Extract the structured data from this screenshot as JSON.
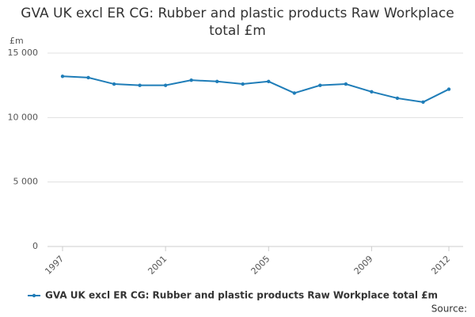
{
  "chart_data": {
    "type": "line",
    "title": "GVA UK excl ER CG: Rubber and plastic products Raw Workplace total £m",
    "y_label": "£m",
    "x": [
      1997,
      1998,
      1999,
      2000,
      2001,
      2002,
      2003,
      2004,
      2005,
      2006,
      2007,
      2008,
      2009,
      2010,
      2011,
      2012
    ],
    "series": [
      {
        "name": "GVA UK excl ER CG: Rubber and plastic products Raw Workplace total £m",
        "color": "#1f7db8",
        "values": [
          13200,
          13100,
          12600,
          12500,
          12500,
          12900,
          12800,
          12600,
          12800,
          11900,
          12500,
          12600,
          12000,
          11500,
          11200,
          12200
        ]
      }
    ],
    "xlim": [
      1997,
      2012
    ],
    "xticks": [
      1997,
      2001,
      2005,
      2009,
      2012
    ],
    "ylim": [
      0,
      15000
    ],
    "yticks": [
      0,
      {
        "value": 5000,
        "label": "5 000"
      },
      {
        "value": 10000,
        "label": "10 000"
      },
      {
        "value": 15000,
        "label": "15 000"
      }
    ],
    "grid": true,
    "source": "Source:"
  }
}
